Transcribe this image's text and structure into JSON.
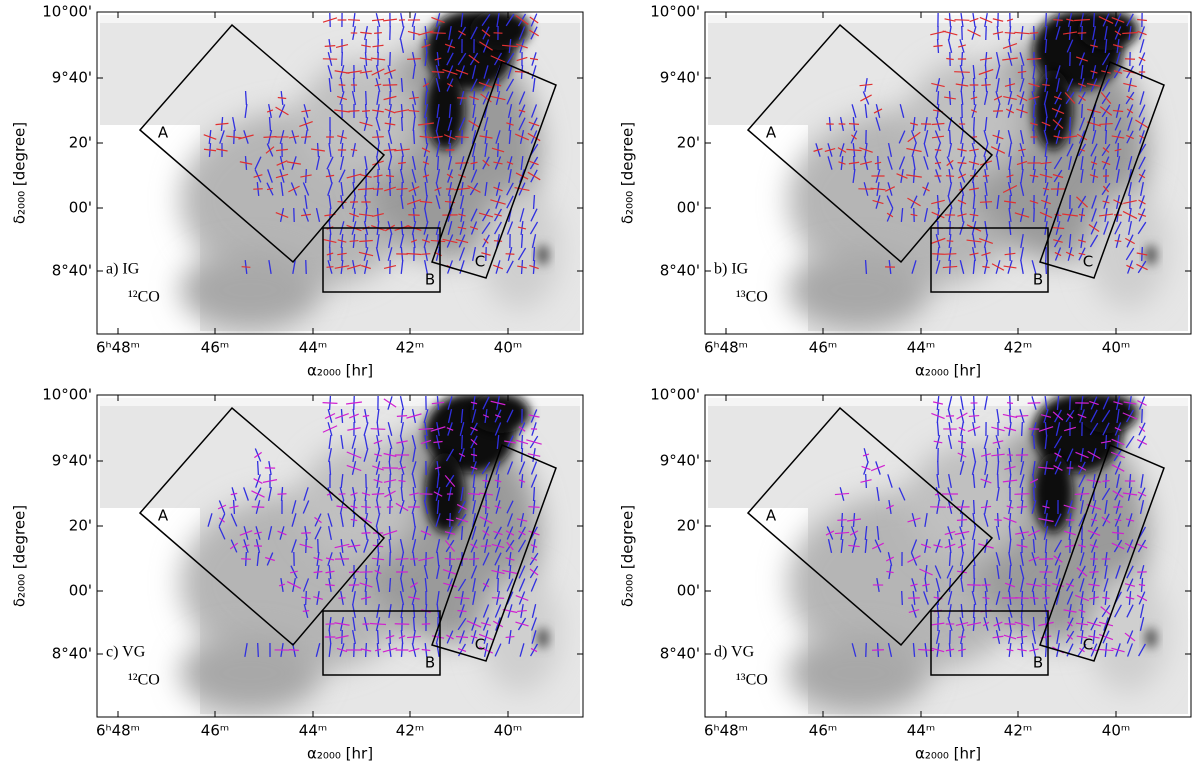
{
  "axes": {
    "x_ticks": [
      "6ʰ48ᵐ",
      "46ᵐ",
      "44ᵐ",
      "42ᵐ",
      "40ᵐ"
    ],
    "y_ticks": [
      "10°00'",
      "9°40'",
      "20'",
      "00'",
      "8°40'"
    ],
    "x_label": "α₂₀₀₀ [hr]",
    "y_label": "δ₂₀₀₀ [degree]"
  },
  "regions": [
    "A",
    "B",
    "C"
  ],
  "panels": [
    {
      "label": "a) IG",
      "tracer": "¹²CO"
    },
    {
      "label": "b) IG",
      "tracer": "¹³CO"
    },
    {
      "label": "c) VG",
      "tracer": "¹²CO"
    },
    {
      "label": "d) VG",
      "tracer": "¹³CO"
    }
  ]
}
